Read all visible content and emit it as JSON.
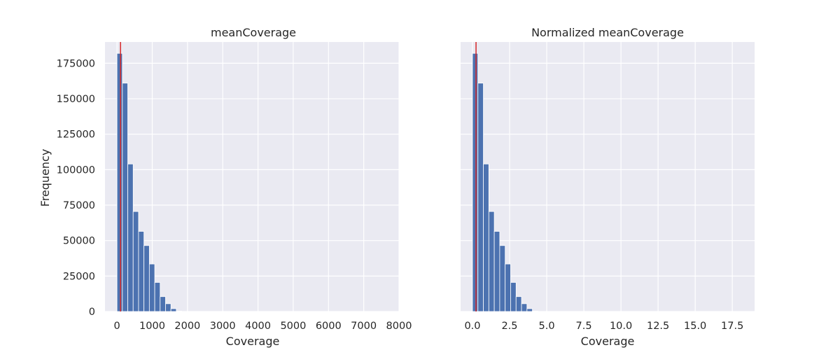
{
  "chart_data": [
    {
      "type": "bar",
      "title": "meanCoverage",
      "xlabel": "Coverage",
      "ylabel": "Frequency",
      "xlim": [
        -340,
        8000
      ],
      "ylim": [
        0,
        190000
      ],
      "xticks": [
        0,
        1000,
        2000,
        3000,
        4000,
        5000,
        6000,
        7000,
        8000
      ],
      "xtick_labels": [
        "0",
        "1000",
        "2000",
        "3000",
        "4000",
        "5000",
        "6000",
        "7000",
        "8000"
      ],
      "yticks": [
        0,
        25000,
        50000,
        75000,
        100000,
        125000,
        150000,
        175000
      ],
      "ytick_labels": [
        "0",
        "25000",
        "50000",
        "75000",
        "100000",
        "125000",
        "150000",
        "175000"
      ],
      "bin_edges": [
        0,
        153,
        306,
        459,
        612,
        765,
        918,
        1071,
        1224,
        1377,
        1530,
        1683,
        1836
      ],
      "values": [
        182000,
        161000,
        104000,
        70500,
        56500,
        46500,
        33500,
        20500,
        10500,
        5500,
        2000,
        300
      ],
      "vline": 100,
      "bar_color": "#4c72b0",
      "vline_color": "#d62728",
      "grid": true
    },
    {
      "type": "bar",
      "title": "Normalized meanCoverage",
      "xlabel": "Coverage",
      "ylabel": "",
      "xlim": [
        -0.8,
        19
      ],
      "ylim": [
        0,
        190000
      ],
      "xticks": [
        0,
        2.5,
        5,
        7.5,
        10,
        12.5,
        15,
        17.5
      ],
      "xtick_labels": [
        "0.0",
        "2.5",
        "5.0",
        "7.5",
        "10.0",
        "12.5",
        "15.0",
        "17.5"
      ],
      "yticks": [
        0,
        25000,
        50000,
        75000,
        100000,
        125000,
        150000,
        175000
      ],
      "ytick_labels": [],
      "bin_edges": [
        0,
        0.367,
        0.734,
        1.101,
        1.468,
        1.835,
        2.202,
        2.569,
        2.936,
        3.303,
        3.67,
        4.037,
        4.404
      ],
      "values": [
        182000,
        161000,
        104000,
        70500,
        56500,
        46500,
        33500,
        20500,
        10500,
        5500,
        2000,
        300
      ],
      "vline": 0.24,
      "bar_color": "#4c72b0",
      "vline_color": "#d62728",
      "grid": true
    }
  ]
}
